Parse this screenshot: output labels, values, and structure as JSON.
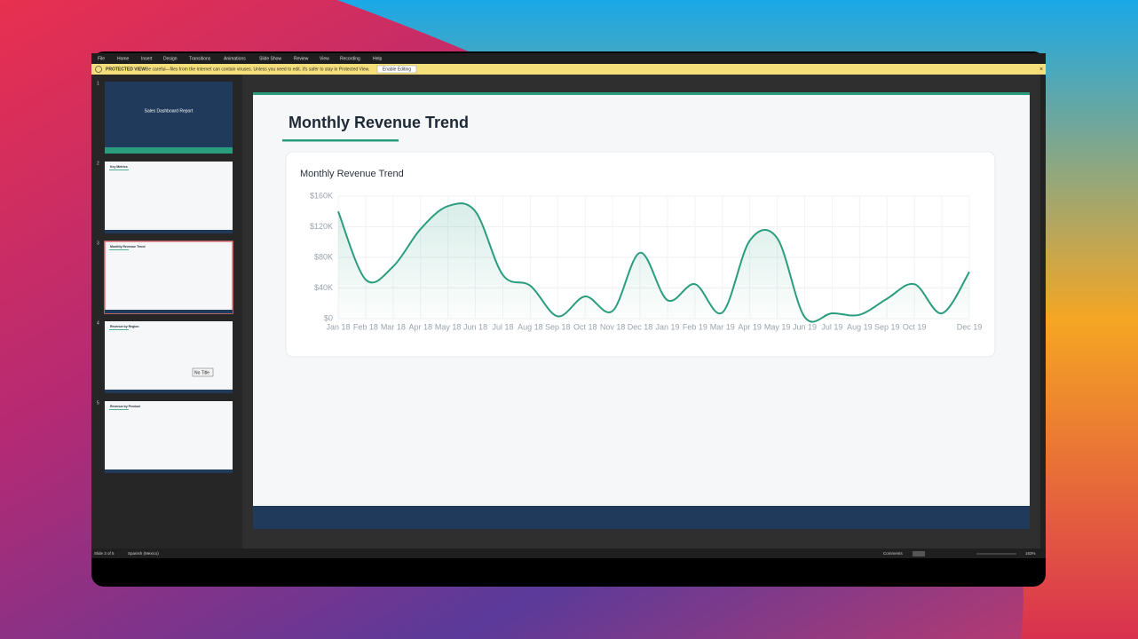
{
  "ribbon": {
    "tabs": [
      "File",
      "Home",
      "Insert",
      "Design",
      "Transitions",
      "Animations",
      "Slide Show",
      "Review",
      "View",
      "Recording",
      "Help"
    ]
  },
  "protected_view": {
    "label": "PROTECTED VIEW",
    "message": "Be careful—files from the Internet can contain viruses. Unless you need to edit, it's safer to stay in Protected View.",
    "button": "Enable Editing"
  },
  "thumbnails": [
    {
      "number": 1,
      "title": "Sales Dashboard Report"
    },
    {
      "number": 2,
      "title": "Key Metrics"
    },
    {
      "number": 3,
      "title": "Monthly Revenue Trend"
    },
    {
      "number": 4,
      "title": "Revenue by Region"
    },
    {
      "number": 5,
      "title": "Revenue by Product"
    }
  ],
  "tooltip": "No Title",
  "slide": {
    "title": "Monthly Revenue Trend"
  },
  "chart_data": {
    "type": "line",
    "title": "Monthly Revenue Trend",
    "categories": [
      "Jan 18",
      "Feb 18",
      "Mar 18",
      "Apr 18",
      "May 18",
      "Jun 18",
      "Jul 18",
      "Aug 18",
      "Sep 18",
      "Oct 18",
      "Nov 18",
      "Dec 18",
      "Jan 19",
      "Feb 19",
      "Mar 19",
      "Apr 19",
      "May 19",
      "Jun 19",
      "Jul 19",
      "Aug 19",
      "Sep 19",
      "Oct 19",
      null,
      "Dec 19"
    ],
    "series": [
      {
        "name": "Revenue",
        "color": "#2a9d7f",
        "values": [
          140000,
          51000,
          68000,
          117000,
          147000,
          140000,
          57000,
          43000,
          3000,
          29000,
          10000,
          86000,
          24000,
          45000,
          8000,
          102000,
          105000,
          2000,
          7000,
          5000,
          26000,
          45000,
          7000,
          61000
        ]
      }
    ],
    "ylim": [
      0,
      160000
    ],
    "yticks": [
      {
        "value": 0,
        "label": "$0"
      },
      {
        "value": 40000,
        "label": "$40K"
      },
      {
        "value": 80000,
        "label": "$80K"
      },
      {
        "value": 120000,
        "label": "$120K"
      },
      {
        "value": 160000,
        "label": "$160K"
      }
    ],
    "grid": true
  },
  "status_bar": {
    "slide": "Slide 3 of 5",
    "language": "Spanish (Mexico)",
    "comments": "Comments",
    "zoom": "163%"
  }
}
